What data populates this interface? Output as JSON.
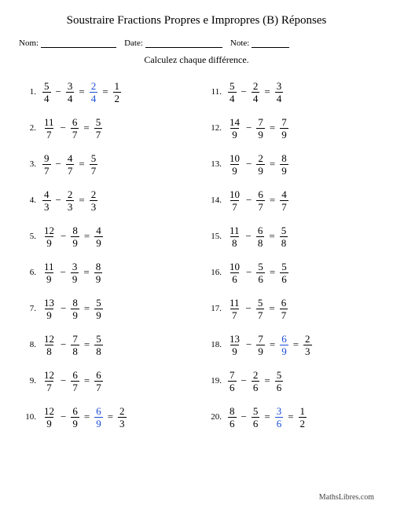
{
  "title": "Soustraire Fractions Propres e Impropres (B) Réponses",
  "labels": {
    "nom": "Nom:",
    "date": "Date:",
    "note": "Note:"
  },
  "header_line_widths": {
    "nom": 96,
    "date": 98,
    "note": 48
  },
  "instruction": "Calculez chaque différence.",
  "footer": "MathsLibres.com",
  "ops": {
    "minus": "−",
    "equals": "="
  },
  "colors": {
    "normal": "#000000",
    "reducible": "#1a4bd6"
  },
  "columns": [
    [
      {
        "n": 1,
        "terms": [
          [
            5,
            4
          ],
          [
            3,
            4
          ],
          [
            2,
            4
          ],
          [
            1,
            2
          ]
        ],
        "reducibleIdx": 2
      },
      {
        "n": 2,
        "terms": [
          [
            11,
            7
          ],
          [
            6,
            7
          ],
          [
            5,
            7
          ]
        ]
      },
      {
        "n": 3,
        "terms": [
          [
            9,
            7
          ],
          [
            4,
            7
          ],
          [
            5,
            7
          ]
        ]
      },
      {
        "n": 4,
        "terms": [
          [
            4,
            3
          ],
          [
            2,
            3
          ],
          [
            2,
            3
          ]
        ]
      },
      {
        "n": 5,
        "terms": [
          [
            12,
            9
          ],
          [
            8,
            9
          ],
          [
            4,
            9
          ]
        ]
      },
      {
        "n": 6,
        "terms": [
          [
            11,
            9
          ],
          [
            3,
            9
          ],
          [
            8,
            9
          ]
        ]
      },
      {
        "n": 7,
        "terms": [
          [
            13,
            9
          ],
          [
            8,
            9
          ],
          [
            5,
            9
          ]
        ]
      },
      {
        "n": 8,
        "terms": [
          [
            12,
            8
          ],
          [
            7,
            8
          ],
          [
            5,
            8
          ]
        ]
      },
      {
        "n": 9,
        "terms": [
          [
            12,
            7
          ],
          [
            6,
            7
          ],
          [
            6,
            7
          ]
        ]
      },
      {
        "n": 10,
        "terms": [
          [
            12,
            9
          ],
          [
            6,
            9
          ],
          [
            6,
            9
          ],
          [
            2,
            3
          ]
        ],
        "reducibleIdx": 2
      }
    ],
    [
      {
        "n": 11,
        "terms": [
          [
            5,
            4
          ],
          [
            2,
            4
          ],
          [
            3,
            4
          ]
        ]
      },
      {
        "n": 12,
        "terms": [
          [
            14,
            9
          ],
          [
            7,
            9
          ],
          [
            7,
            9
          ]
        ]
      },
      {
        "n": 13,
        "terms": [
          [
            10,
            9
          ],
          [
            2,
            9
          ],
          [
            8,
            9
          ]
        ]
      },
      {
        "n": 14,
        "terms": [
          [
            10,
            7
          ],
          [
            6,
            7
          ],
          [
            4,
            7
          ]
        ]
      },
      {
        "n": 15,
        "terms": [
          [
            11,
            8
          ],
          [
            6,
            8
          ],
          [
            5,
            8
          ]
        ]
      },
      {
        "n": 16,
        "terms": [
          [
            10,
            6
          ],
          [
            5,
            6
          ],
          [
            5,
            6
          ]
        ]
      },
      {
        "n": 17,
        "terms": [
          [
            11,
            7
          ],
          [
            5,
            7
          ],
          [
            6,
            7
          ]
        ]
      },
      {
        "n": 18,
        "terms": [
          [
            13,
            9
          ],
          [
            7,
            9
          ],
          [
            6,
            9
          ],
          [
            2,
            3
          ]
        ],
        "reducibleIdx": 2
      },
      {
        "n": 19,
        "terms": [
          [
            7,
            6
          ],
          [
            2,
            6
          ],
          [
            5,
            6
          ]
        ]
      },
      {
        "n": 20,
        "terms": [
          [
            8,
            6
          ],
          [
            5,
            6
          ],
          [
            3,
            6
          ],
          [
            1,
            2
          ]
        ],
        "reducibleIdx": 2
      }
    ]
  ]
}
